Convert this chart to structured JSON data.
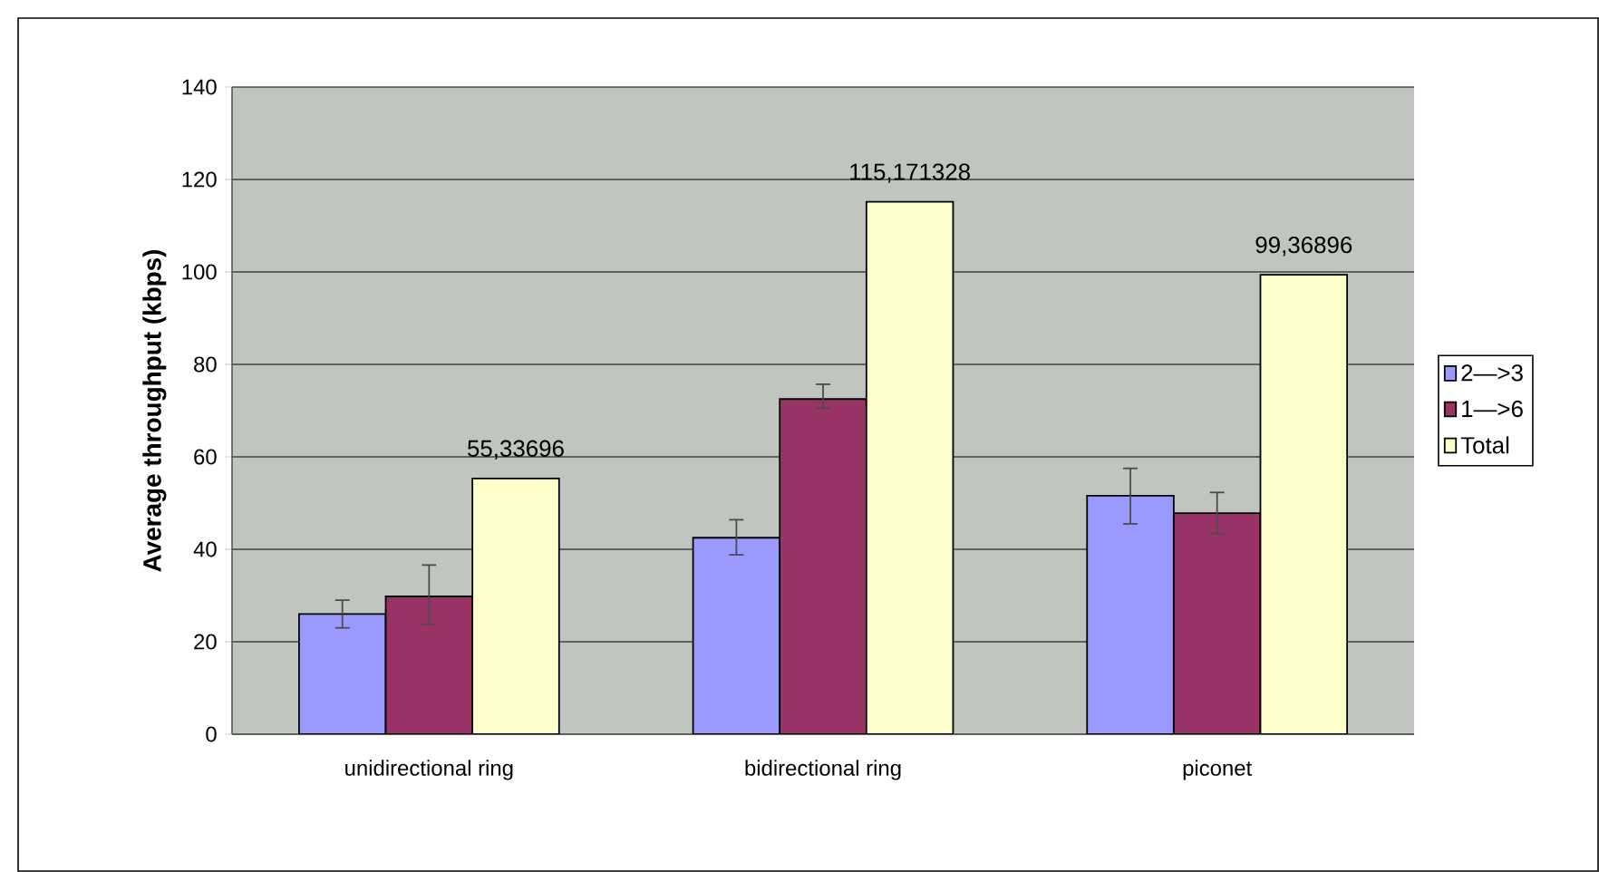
{
  "chart_data": {
    "type": "bar",
    "ylabel": "Average throughput (kbps)",
    "categories": [
      "unidirectional ring",
      "bidirectional ring",
      "piconet"
    ],
    "series": [
      {
        "name": "2—>3",
        "color": "#9999ff",
        "values": [
          26.0,
          42.5,
          51.6
        ],
        "errors": [
          [
            23.0,
            29.0
          ],
          [
            38.8,
            46.4
          ],
          [
            45.5,
            57.5
          ]
        ]
      },
      {
        "name": "1—>6",
        "color": "#993366",
        "values": [
          29.8,
          72.5,
          47.8
        ],
        "errors": [
          [
            23.8,
            36.6
          ],
          [
            70.5,
            75.7
          ],
          [
            43.4,
            52.3
          ]
        ]
      },
      {
        "name": "Total",
        "color": "#ffffcc",
        "values": [
          55.33696,
          115.171328,
          99.36896
        ],
        "value_labels": [
          "55,33696",
          "115,171328",
          "99,36896"
        ]
      }
    ],
    "ylim": [
      0,
      140
    ],
    "yticks": [
      0,
      20,
      40,
      60,
      80,
      100,
      120,
      140
    ],
    "grid": "y",
    "legend": "right"
  }
}
